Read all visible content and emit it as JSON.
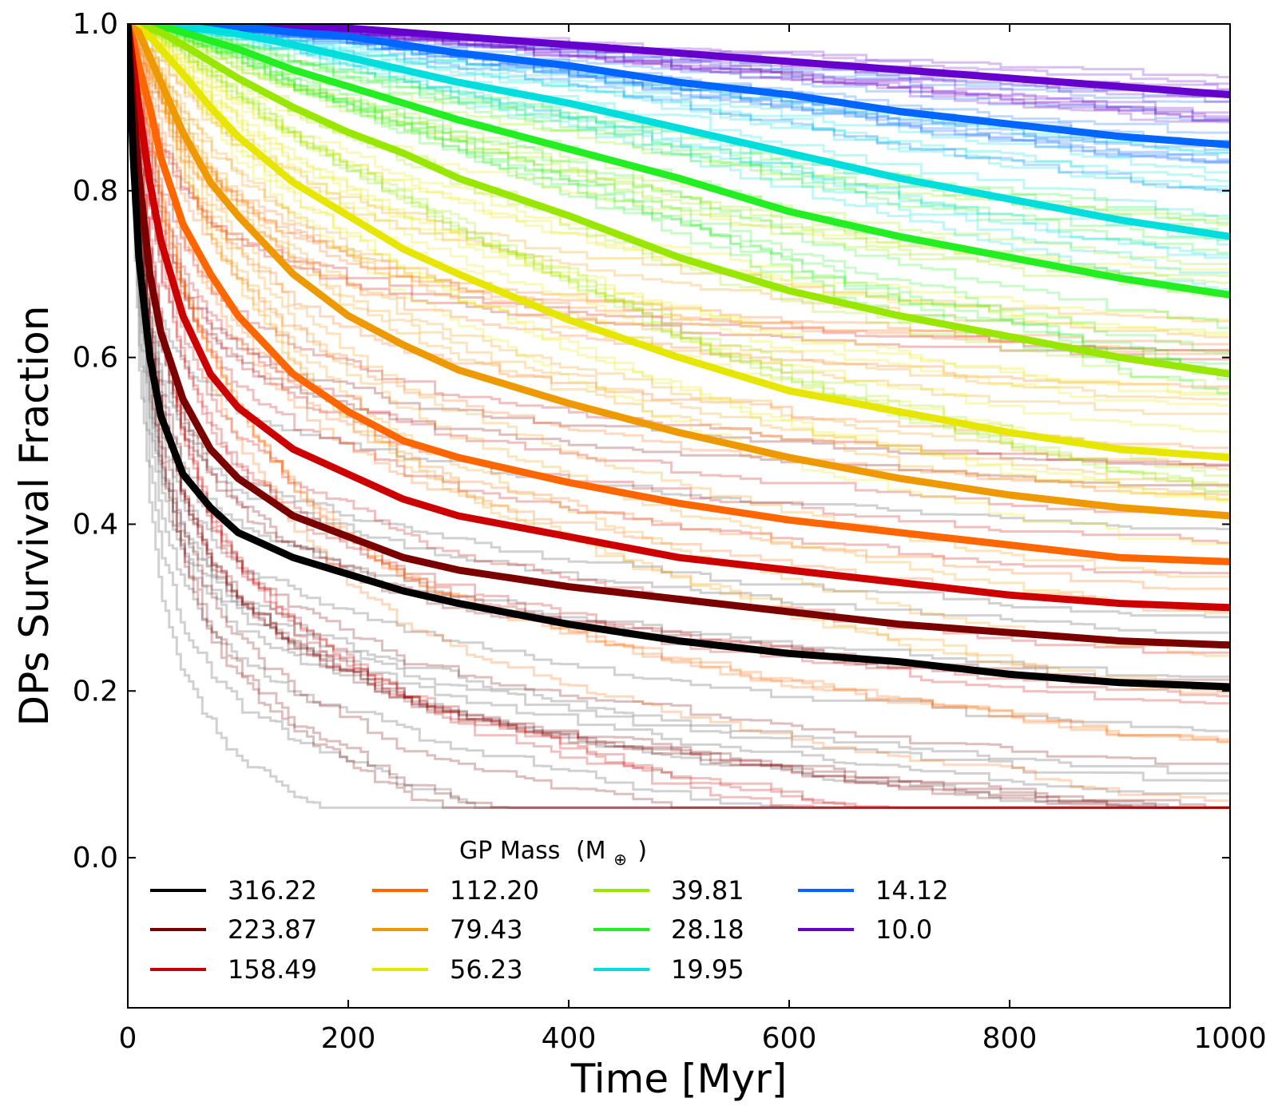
{
  "chart_data": {
    "type": "line",
    "title": "",
    "xlabel": "Time [Myr]",
    "ylabel": "DPs Survival Fraction",
    "xlim": [
      0,
      1000
    ],
    "ylim": [
      -0.18,
      1.0
    ],
    "xticks": [
      0,
      200,
      400,
      600,
      800,
      1000
    ],
    "xtick_labels": [
      "0",
      "200",
      "400",
      "600",
      "800",
      "1000"
    ],
    "yticks": [
      0.0,
      0.2,
      0.4,
      0.6,
      0.8,
      1.0
    ],
    "ytick_labels": [
      "0.0",
      "0.2",
      "0.4",
      "0.6",
      "0.8",
      "1.0"
    ],
    "legend": {
      "title": "GP Mass",
      "title_unit": "(M",
      "title_unit_symbol": "⊕",
      "title_unit_close": ")",
      "placement": "bottom-left inside, 4 columns"
    },
    "x": [
      0,
      5,
      10,
      20,
      30,
      50,
      75,
      100,
      150,
      200,
      250,
      300,
      400,
      500,
      600,
      700,
      800,
      900,
      1000
    ],
    "series": [
      {
        "name": "316.22",
        "color": "#000000",
        "values": [
          1.0,
          0.84,
          0.72,
          0.6,
          0.53,
          0.46,
          0.42,
          0.39,
          0.36,
          0.34,
          0.32,
          0.305,
          0.28,
          0.26,
          0.245,
          0.235,
          0.22,
          0.21,
          0.205
        ]
      },
      {
        "name": "223.87",
        "color": "#7a0000",
        "values": [
          1.0,
          0.9,
          0.82,
          0.7,
          0.63,
          0.55,
          0.49,
          0.455,
          0.41,
          0.385,
          0.36,
          0.345,
          0.325,
          0.31,
          0.295,
          0.28,
          0.27,
          0.26,
          0.255
        ]
      },
      {
        "name": "158.49",
        "color": "#cc0000",
        "values": [
          1.0,
          0.95,
          0.9,
          0.81,
          0.74,
          0.65,
          0.58,
          0.54,
          0.49,
          0.46,
          0.43,
          0.41,
          0.385,
          0.36,
          0.345,
          0.33,
          0.315,
          0.305,
          0.3
        ]
      },
      {
        "name": "112.20",
        "color": "#ff6600",
        "values": [
          1.0,
          0.98,
          0.95,
          0.9,
          0.84,
          0.76,
          0.7,
          0.65,
          0.58,
          0.535,
          0.5,
          0.48,
          0.45,
          0.425,
          0.405,
          0.39,
          0.375,
          0.36,
          0.355
        ]
      },
      {
        "name": "79.43",
        "color": "#ee9900",
        "values": [
          1.0,
          0.995,
          0.99,
          0.96,
          0.93,
          0.87,
          0.81,
          0.77,
          0.7,
          0.65,
          0.615,
          0.585,
          0.545,
          0.51,
          0.48,
          0.455,
          0.435,
          0.42,
          0.41
        ]
      },
      {
        "name": "56.23",
        "color": "#e6e600",
        "values": [
          1.0,
          1.0,
          0.995,
          0.985,
          0.97,
          0.94,
          0.9,
          0.865,
          0.81,
          0.77,
          0.73,
          0.7,
          0.645,
          0.6,
          0.56,
          0.535,
          0.51,
          0.49,
          0.48
        ]
      },
      {
        "name": "39.81",
        "color": "#99e600",
        "values": [
          1.0,
          1.0,
          1.0,
          0.995,
          0.99,
          0.975,
          0.955,
          0.935,
          0.9,
          0.87,
          0.845,
          0.815,
          0.77,
          0.72,
          0.68,
          0.65,
          0.625,
          0.6,
          0.58
        ]
      },
      {
        "name": "28.18",
        "color": "#22ee22",
        "values": [
          1.0,
          1.0,
          1.0,
          1.0,
          0.998,
          0.99,
          0.98,
          0.97,
          0.945,
          0.925,
          0.905,
          0.885,
          0.85,
          0.815,
          0.775,
          0.745,
          0.72,
          0.695,
          0.675
        ]
      },
      {
        "name": "19.95",
        "color": "#00dddd",
        "values": [
          1.0,
          1.0,
          1.0,
          1.0,
          1.0,
          0.997,
          0.993,
          0.988,
          0.975,
          0.96,
          0.945,
          0.93,
          0.905,
          0.875,
          0.845,
          0.815,
          0.79,
          0.765,
          0.745
        ]
      },
      {
        "name": "14.12",
        "color": "#0066ff",
        "values": [
          1.0,
          1.0,
          1.0,
          1.0,
          1.0,
          1.0,
          0.999,
          0.997,
          0.99,
          0.985,
          0.975,
          0.965,
          0.95,
          0.93,
          0.915,
          0.895,
          0.88,
          0.865,
          0.855
        ]
      },
      {
        "name": "10.0",
        "color": "#6600cc",
        "values": [
          1.0,
          1.0,
          1.0,
          1.0,
          1.0,
          1.0,
          1.0,
          1.0,
          0.998,
          0.995,
          0.99,
          0.985,
          0.975,
          0.965,
          0.955,
          0.945,
          0.935,
          0.925,
          0.915
        ]
      }
    ]
  }
}
